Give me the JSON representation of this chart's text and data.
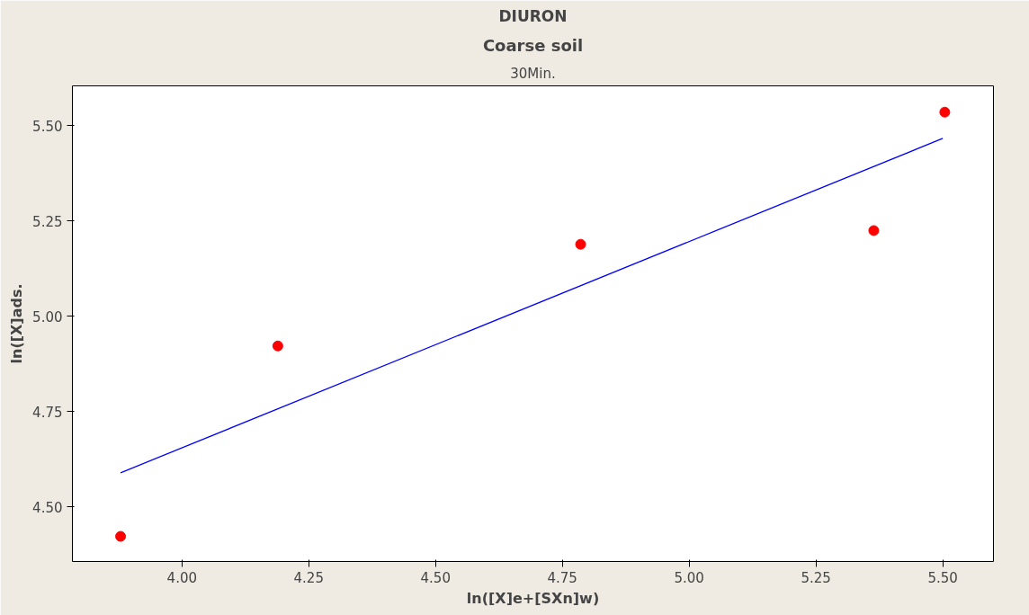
{
  "chart_data": {
    "type": "scatter",
    "title": "DIURON",
    "subtitle": "Coarse soil",
    "annotations": [
      "30Min."
    ],
    "xlabel": "ln([X]e+[SXn]w)",
    "ylabel": "ln([X]ads.",
    "xlim": [
      3.784,
      5.6
    ],
    "ylim": [
      4.356,
      5.605
    ],
    "xticks": [
      {
        "value": 4,
        "label": "4.00"
      },
      {
        "value": 4.25,
        "label": "4.25"
      },
      {
        "value": 4.5,
        "label": "4.50"
      },
      {
        "value": 4.75,
        "label": "4.75"
      },
      {
        "value": 5,
        "label": "5.00"
      },
      {
        "value": 5.25,
        "label": "5.25"
      },
      {
        "value": 5.5,
        "label": "5.50"
      }
    ],
    "yticks": [
      {
        "value": 4.5,
        "label": "4.50"
      },
      {
        "value": 4.75,
        "label": "4.75"
      },
      {
        "value": 5,
        "label": "5.00"
      },
      {
        "value": 5.25,
        "label": "5.25"
      },
      {
        "value": 5.5,
        "label": "5.50"
      }
    ],
    "grid": false,
    "marker": "circle",
    "series": [
      {
        "color": "#ff0000",
        "x": [
          3.879,
          4.189,
          4.786,
          5.364,
          5.504
        ],
        "values": [
          4.422,
          4.922,
          5.189,
          5.225,
          5.536
        ]
      },
      {
        "type": "line",
        "marker": "none",
        "color": "#0000ff",
        "x": [
          3.879,
          5.5
        ],
        "values": [
          4.589,
          5.467
        ]
      }
    ]
  }
}
